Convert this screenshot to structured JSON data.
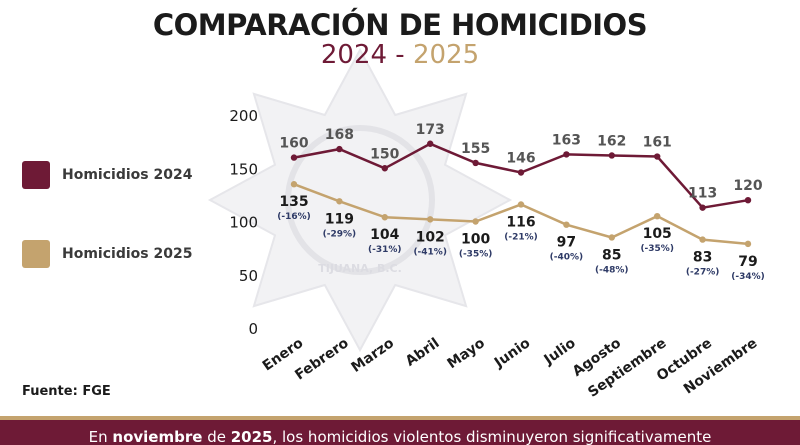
{
  "header": {
    "title": "COMPARACIÓN DE HOMICIDIOS",
    "year_a": "2024",
    "separator": " - ",
    "year_b": "2025"
  },
  "legend": [
    {
      "label": "Homicidios 2024",
      "color": "#6e1a36"
    },
    {
      "label": "Homicidios 2025",
      "color": "#c4a36e"
    }
  ],
  "watermark": {
    "text": "TIJUANA, B.C."
  },
  "source": "Fuente: FGE",
  "footer": {
    "part1": "En ",
    "bold1": "noviembre",
    "part2": " de ",
    "bold2": "2025",
    "part3": ", los homicidios violentos disminuyeron significativamente"
  },
  "chart_data": {
    "type": "line",
    "categories": [
      "Enero",
      "Febrero",
      "Marzo",
      "Abril",
      "Mayo",
      "Junio",
      "Julio",
      "Agosto",
      "Septiembre",
      "Octubre",
      "Noviembre"
    ],
    "series": [
      {
        "name": "Homicidios 2024",
        "color": "#6e1a36",
        "values": [
          160,
          168,
          150,
          173,
          155,
          146,
          163,
          162,
          161,
          113,
          120
        ]
      },
      {
        "name": "Homicidios 2025",
        "color": "#c4a36e",
        "values": [
          135,
          119,
          104,
          102,
          100,
          116,
          97,
          85,
          105,
          83,
          79
        ],
        "changes": [
          "(-16%)",
          "(-29%)",
          "(-31%)",
          "(-41%)",
          "(-35%)",
          "(-21%)",
          "(-40%)",
          "(-48%)",
          "(-35%)",
          "(-27%)",
          "(-34%)"
        ]
      }
    ],
    "yticks": [
      0,
      50,
      100,
      150,
      200
    ],
    "ylim": [
      0,
      200
    ],
    "grid": false,
    "legend_position": "left"
  }
}
